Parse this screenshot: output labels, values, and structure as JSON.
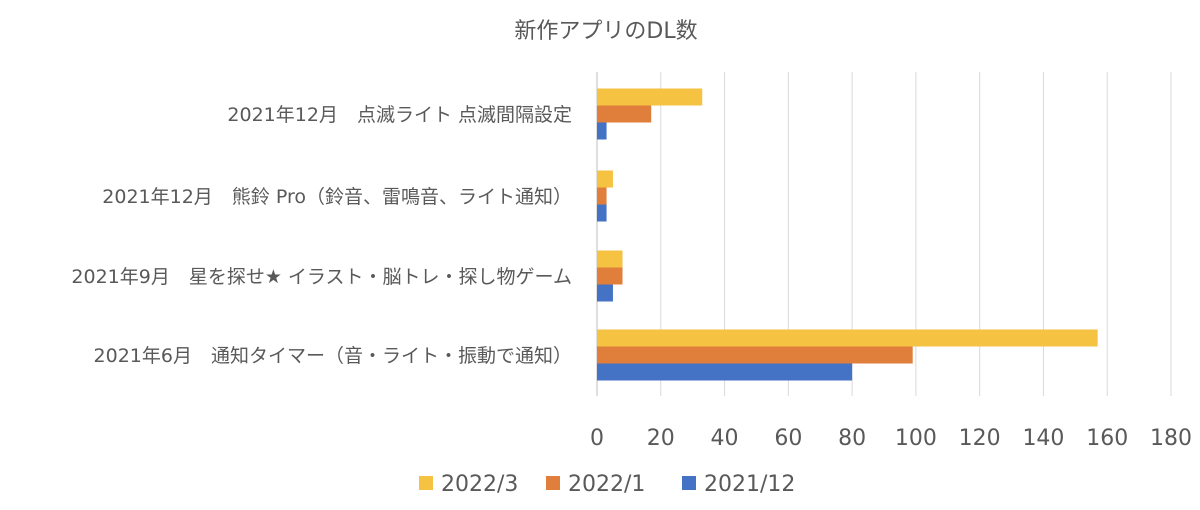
{
  "chart_data": {
    "type": "bar",
    "orientation": "horizontal",
    "title": "新作アプリのDL数",
    "xlabel": "",
    "ylabel": "",
    "xlim": [
      0,
      180
    ],
    "x_ticks": [
      0,
      20,
      40,
      60,
      80,
      100,
      120,
      140,
      160,
      180
    ],
    "grid": true,
    "legend_position": "bottom",
    "categories": [
      "2021年12月　点滅ライト 点滅間隔設定",
      "2021年12月　熊鈴 Pro（鈴音、雷鳴音、ライト通知）",
      "2021年9月　星を探せ★ イラスト・脳トレ・探し物ゲーム",
      "2021年6月　通知タイマー（音・ライト・振動で通知）"
    ],
    "series": [
      {
        "name": "2022/3",
        "color": "#F5C242",
        "values": [
          33,
          5,
          8,
          157
        ]
      },
      {
        "name": "2022/1",
        "color": "#E07E3C",
        "values": [
          17,
          3,
          8,
          99
        ]
      },
      {
        "name": "2021/12",
        "color": "#4472C4",
        "values": [
          3,
          3,
          5,
          80
        ]
      }
    ]
  }
}
